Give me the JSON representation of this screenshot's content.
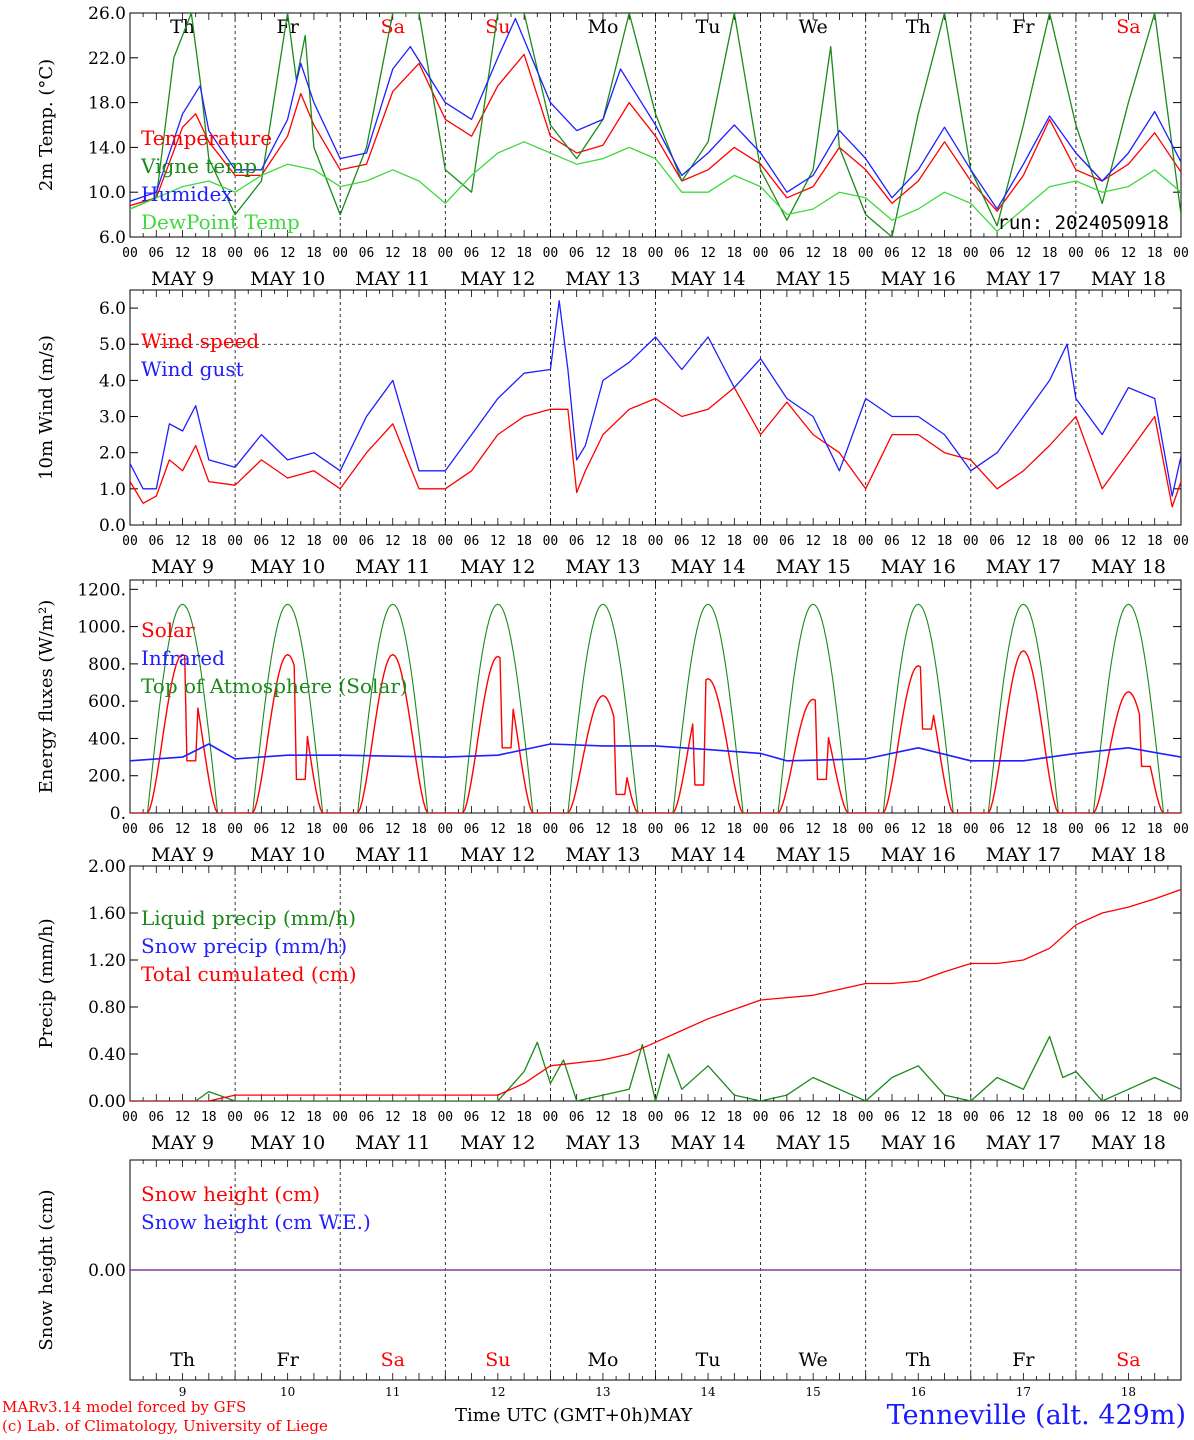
{
  "colors": {
    "red": "#ff0000",
    "green": "#1a8a1a",
    "lightgreen": "#3fd93f",
    "blue": "#1f1fff",
    "purple": "#7f3fa0",
    "axis": "#000000"
  },
  "days": [
    {
      "weekday": "Th",
      "date": "MAY  9",
      "num": "9",
      "weekend": false
    },
    {
      "weekday": "Fr",
      "date": "MAY 10",
      "num": "10",
      "weekend": false
    },
    {
      "weekday": "Sa",
      "date": "MAY 11",
      "num": "11",
      "weekend": true
    },
    {
      "weekday": "Su",
      "date": "MAY 12",
      "num": "12",
      "weekend": true
    },
    {
      "weekday": "Mo",
      "date": "MAY 13",
      "num": "13",
      "weekend": false
    },
    {
      "weekday": "Tu",
      "date": "MAY 14",
      "num": "14",
      "weekend": false
    },
    {
      "weekday": "We",
      "date": "MAY 15",
      "num": "15",
      "weekend": false
    },
    {
      "weekday": "Th",
      "date": "MAY 16",
      "num": "16",
      "weekend": false
    },
    {
      "weekday": "Fr",
      "date": "MAY 17",
      "num": "17",
      "weekend": false
    },
    {
      "weekday": "Sa",
      "date": "MAY 18",
      "num": "18",
      "weekend": true
    }
  ],
  "hour_labels": [
    "00",
    "06",
    "12",
    "18"
  ],
  "final_hour_label": "00",
  "footer": {
    "credit_line1": "MARv3.14 model forced by GFS",
    "credit_line2": "(c) Lab. of Climatology, University of Liege",
    "time_label": "Time UTC (GMT+0h)",
    "month_label": "MAY",
    "station": "Tenneville (alt. 429m)"
  },
  "chart_data": [
    {
      "type": "line",
      "ylabel": "2m Temp. (°C)",
      "ylim": [
        6.0,
        26.0
      ],
      "yticks": [
        "6.0",
        "10.0",
        "14.0",
        "18.0",
        "22.0",
        "26.0"
      ],
      "annotation": "run: 2024050918",
      "xlim_hours": [
        0,
        240
      ],
      "series": [
        {
          "name": "Temperature",
          "color": "red",
          "x_hours": [
            0,
            6,
            12,
            15,
            18,
            24,
            30,
            36,
            39,
            42,
            48,
            54,
            60,
            66,
            72,
            78,
            84,
            90,
            96,
            102,
            108,
            114,
            120,
            126,
            132,
            138,
            144,
            150,
            156,
            162,
            168,
            174,
            180,
            186,
            192,
            198,
            204,
            210,
            216,
            222,
            228,
            234,
            240
          ],
          "values": [
            8.8,
            9.5,
            15.8,
            17.0,
            14.5,
            11.5,
            11.5,
            15.0,
            18.8,
            16.0,
            12.0,
            12.5,
            19.0,
            21.5,
            16.5,
            15.0,
            19.5,
            22.3,
            15.0,
            13.5,
            14.2,
            18.0,
            15.0,
            11.0,
            12.0,
            14.0,
            12.5,
            9.5,
            10.5,
            14.0,
            12.0,
            9.0,
            11.0,
            14.5,
            11.0,
            8.3,
            11.5,
            16.5,
            12.0,
            11.0,
            12.5,
            15.3,
            11.8
          ]
        },
        {
          "name": "Vigne temp",
          "color": "green",
          "x_hours": [
            0,
            6,
            10,
            14,
            16,
            18,
            24,
            30,
            36,
            38,
            40,
            42,
            48,
            54,
            60,
            66,
            72,
            78,
            84,
            90,
            96,
            102,
            108,
            114,
            120,
            126,
            132,
            138,
            144,
            150,
            156,
            160,
            162,
            168,
            174,
            180,
            186,
            192,
            198,
            204,
            210,
            216,
            222,
            228,
            234,
            240
          ],
          "values": [
            8.5,
            9.5,
            22.0,
            26.0,
            20.0,
            13.0,
            8.0,
            11.0,
            26.0,
            20.0,
            24.0,
            14.0,
            8.0,
            14.0,
            26.0,
            26.0,
            12.0,
            10.0,
            26.0,
            26.0,
            16.0,
            13.0,
            16.5,
            26.0,
            17.0,
            11.0,
            14.5,
            26.0,
            12.0,
            7.5,
            12.0,
            23.0,
            14.0,
            8.0,
            6.0,
            17.0,
            26.0,
            12.0,
            7.0,
            16.0,
            26.0,
            16.0,
            9.0,
            18.0,
            26.0,
            8.0
          ]
        },
        {
          "name": "Humidex",
          "color": "blue",
          "x_hours": [
            0,
            6,
            12,
            16,
            18,
            24,
            30,
            36,
            39,
            42,
            48,
            54,
            60,
            64,
            72,
            78,
            84,
            88,
            96,
            102,
            108,
            112,
            120,
            126,
            132,
            138,
            144,
            150,
            156,
            162,
            168,
            174,
            180,
            186,
            192,
            198,
            204,
            210,
            216,
            222,
            228,
            234,
            240
          ],
          "values": [
            9.2,
            10.0,
            17.0,
            19.5,
            15.5,
            12.0,
            12.0,
            16.5,
            21.5,
            18.0,
            13.0,
            13.5,
            21.0,
            23.0,
            18.0,
            16.5,
            22.0,
            25.5,
            18.0,
            15.5,
            16.5,
            21.0,
            16.0,
            11.5,
            13.5,
            16.0,
            13.5,
            10.0,
            11.5,
            15.5,
            13.0,
            9.5,
            12.0,
            15.8,
            12.0,
            8.5,
            12.5,
            16.8,
            13.5,
            11.0,
            13.5,
            17.2,
            12.7
          ]
        },
        {
          "name": "DewPoint Temp",
          "color": "lightgreen",
          "x_hours": [
            0,
            6,
            12,
            18,
            24,
            30,
            36,
            42,
            48,
            54,
            60,
            66,
            72,
            78,
            84,
            90,
            96,
            102,
            108,
            114,
            120,
            126,
            132,
            138,
            144,
            150,
            156,
            162,
            168,
            174,
            180,
            186,
            192,
            198,
            204,
            210,
            216,
            222,
            228,
            234,
            240
          ],
          "values": [
            8.5,
            9.5,
            10.5,
            11.0,
            10.0,
            11.5,
            12.5,
            12.0,
            10.5,
            11.0,
            12.0,
            11.0,
            9.0,
            11.5,
            13.5,
            14.5,
            13.5,
            12.5,
            13.0,
            14.0,
            13.0,
            10.0,
            10.0,
            11.5,
            10.5,
            8.0,
            8.5,
            10.0,
            9.5,
            7.5,
            8.5,
            10.0,
            9.0,
            6.5,
            8.5,
            10.5,
            11.0,
            10.0,
            10.5,
            12.0,
            10.0
          ]
        }
      ]
    },
    {
      "type": "line",
      "ylabel": "10m Wind (m/s)",
      "ylim": [
        0.0,
        6.5
      ],
      "yticks": [
        "0.0",
        "1.0",
        "2.0",
        "3.0",
        "4.0",
        "5.0",
        "6.0"
      ],
      "ref_line": 5.0,
      "xlim_hours": [
        0,
        240
      ],
      "series": [
        {
          "name": "Wind speed",
          "color": "red",
          "x_hours": [
            0,
            3,
            6,
            9,
            12,
            15,
            18,
            24,
            30,
            36,
            42,
            48,
            54,
            60,
            66,
            72,
            78,
            84,
            90,
            96,
            100,
            102,
            104,
            108,
            114,
            120,
            126,
            132,
            138,
            144,
            150,
            156,
            162,
            168,
            174,
            180,
            186,
            192,
            198,
            204,
            210,
            216,
            222,
            228,
            234,
            238,
            240
          ],
          "values": [
            1.2,
            0.6,
            0.8,
            1.8,
            1.5,
            2.2,
            1.2,
            1.1,
            1.8,
            1.3,
            1.5,
            1.0,
            2.0,
            2.8,
            1.0,
            1.0,
            1.5,
            2.5,
            3.0,
            3.2,
            3.2,
            0.9,
            1.5,
            2.5,
            3.2,
            3.5,
            3.0,
            3.2,
            3.8,
            2.5,
            3.4,
            2.5,
            2.0,
            1.0,
            2.5,
            2.5,
            2.0,
            1.8,
            1.0,
            1.5,
            2.2,
            3.0,
            1.0,
            2.0,
            3.0,
            0.5,
            1.2
          ]
        },
        {
          "name": "Wind gust",
          "color": "blue",
          "x_hours": [
            0,
            3,
            6,
            9,
            12,
            15,
            18,
            24,
            30,
            36,
            42,
            48,
            54,
            60,
            66,
            72,
            78,
            84,
            90,
            96,
            98,
            100,
            102,
            104,
            108,
            114,
            120,
            126,
            132,
            138,
            144,
            150,
            156,
            162,
            168,
            174,
            180,
            186,
            192,
            198,
            204,
            210,
            214,
            216,
            222,
            228,
            234,
            238,
            240
          ],
          "values": [
            1.7,
            1.0,
            1.0,
            2.8,
            2.6,
            3.3,
            1.8,
            1.6,
            2.5,
            1.8,
            2.0,
            1.5,
            3.0,
            4.0,
            1.5,
            1.5,
            2.5,
            3.5,
            4.2,
            4.3,
            6.2,
            4.3,
            1.8,
            2.2,
            4.0,
            4.5,
            5.2,
            4.3,
            5.2,
            3.8,
            4.6,
            3.5,
            3.0,
            1.5,
            3.5,
            3.0,
            3.0,
            2.5,
            1.5,
            2.0,
            3.0,
            4.0,
            5.0,
            3.5,
            2.5,
            3.8,
            3.5,
            0.8,
            1.9
          ]
        }
      ]
    },
    {
      "type": "line",
      "ylabel": "Energy fluxes (W/m²)",
      "ylim": [
        0,
        1250
      ],
      "yticks": [
        "0.",
        "200.",
        "400.",
        "600.",
        "800.",
        "1000.",
        "1200."
      ],
      "xlim_hours": [
        0,
        240
      ],
      "diurnal": {
        "toa_peak": 1120,
        "sunrise_hour": 4,
        "sunset_hour": 20
      },
      "solar_peaks": [
        {
          "day": 0,
          "peak": 850,
          "dip_at": 14,
          "dip": 280
        },
        {
          "day": 1,
          "peak": 850,
          "dip_at": 15,
          "dip": 180
        },
        {
          "day": 2,
          "peak": 850
        },
        {
          "day": 3,
          "peak": 840,
          "dip_at": 14,
          "dip": 350
        },
        {
          "day": 4,
          "peak": 630,
          "dip_at": 16,
          "dip": 100
        },
        {
          "day": 5,
          "peak": 720,
          "dip_at": 10,
          "dip": 150
        },
        {
          "day": 6,
          "peak": 610,
          "dip_at": 14,
          "dip": 180
        },
        {
          "day": 7,
          "peak": 790,
          "dip_at": 14,
          "dip": 450
        },
        {
          "day": 8,
          "peak": 870
        },
        {
          "day": 9,
          "peak": 650,
          "dip_at": 16,
          "dip": 250
        }
      ],
      "series": [
        {
          "name": "Solar",
          "color": "red"
        },
        {
          "name": "Infrared",
          "color": "blue",
          "x_hours": [
            0,
            12,
            18,
            24,
            36,
            48,
            72,
            84,
            96,
            108,
            120,
            132,
            144,
            150,
            168,
            180,
            192,
            204,
            216,
            228,
            240
          ],
          "values": [
            280,
            300,
            370,
            290,
            310,
            310,
            300,
            310,
            370,
            360,
            360,
            340,
            320,
            280,
            290,
            350,
            280,
            280,
            320,
            350,
            300
          ]
        },
        {
          "name": "Top of Atmosphere (Solar)",
          "color": "green"
        }
      ]
    },
    {
      "type": "line",
      "ylabel": "Precip (mm/h)",
      "ylim": [
        0.0,
        2.0
      ],
      "yticks": [
        "0.00",
        "0.40",
        "0.80",
        "1.20",
        "1.60",
        "2.00"
      ],
      "xlim_hours": [
        0,
        240
      ],
      "series": [
        {
          "name": "Liquid precip (mm/h)",
          "color": "green",
          "x_hours": [
            0,
            15,
            18,
            24,
            84,
            90,
            93,
            96,
            99,
            102,
            108,
            114,
            117,
            120,
            123,
            126,
            132,
            138,
            144,
            150,
            156,
            162,
            168,
            174,
            180,
            186,
            192,
            198,
            204,
            210,
            213,
            216,
            222,
            228,
            234,
            240
          ],
          "values": [
            0.0,
            0.0,
            0.08,
            0.0,
            0.0,
            0.25,
            0.5,
            0.15,
            0.35,
            0.0,
            0.05,
            0.1,
            0.48,
            0.0,
            0.4,
            0.1,
            0.3,
            0.05,
            0.0,
            0.05,
            0.2,
            0.1,
            0.0,
            0.2,
            0.3,
            0.05,
            0.0,
            0.2,
            0.1,
            0.55,
            0.2,
            0.25,
            0.0,
            0.1,
            0.2,
            0.1
          ]
        },
        {
          "name": "Snow precip (mm/h)",
          "color": "blue"
        },
        {
          "name": "Total cumulated (cm)",
          "color": "red",
          "x_hours": [
            0,
            18,
            24,
            84,
            90,
            96,
            108,
            114,
            120,
            126,
            132,
            138,
            144,
            150,
            156,
            162,
            168,
            174,
            180,
            186,
            192,
            198,
            204,
            210,
            216,
            222,
            228,
            234,
            240
          ],
          "values": [
            0.0,
            0.0,
            0.05,
            0.05,
            0.15,
            0.3,
            0.35,
            0.4,
            0.5,
            0.6,
            0.7,
            0.78,
            0.86,
            0.88,
            0.9,
            0.95,
            1.0,
            1.0,
            1.02,
            1.1,
            1.17,
            1.17,
            1.2,
            1.3,
            1.5,
            1.6,
            1.65,
            1.72,
            1.8
          ]
        }
      ]
    },
    {
      "type": "line",
      "ylabel": "Snow height (cm)",
      "yticks": [
        "0.00"
      ],
      "xlim_hours": [
        0,
        240
      ],
      "series": [
        {
          "name": "Snow height (cm)",
          "color": "red",
          "values": [
            0
          ]
        },
        {
          "name": "Snow height (cm W.E.)",
          "color": "blue",
          "values": [
            0
          ]
        }
      ]
    }
  ]
}
